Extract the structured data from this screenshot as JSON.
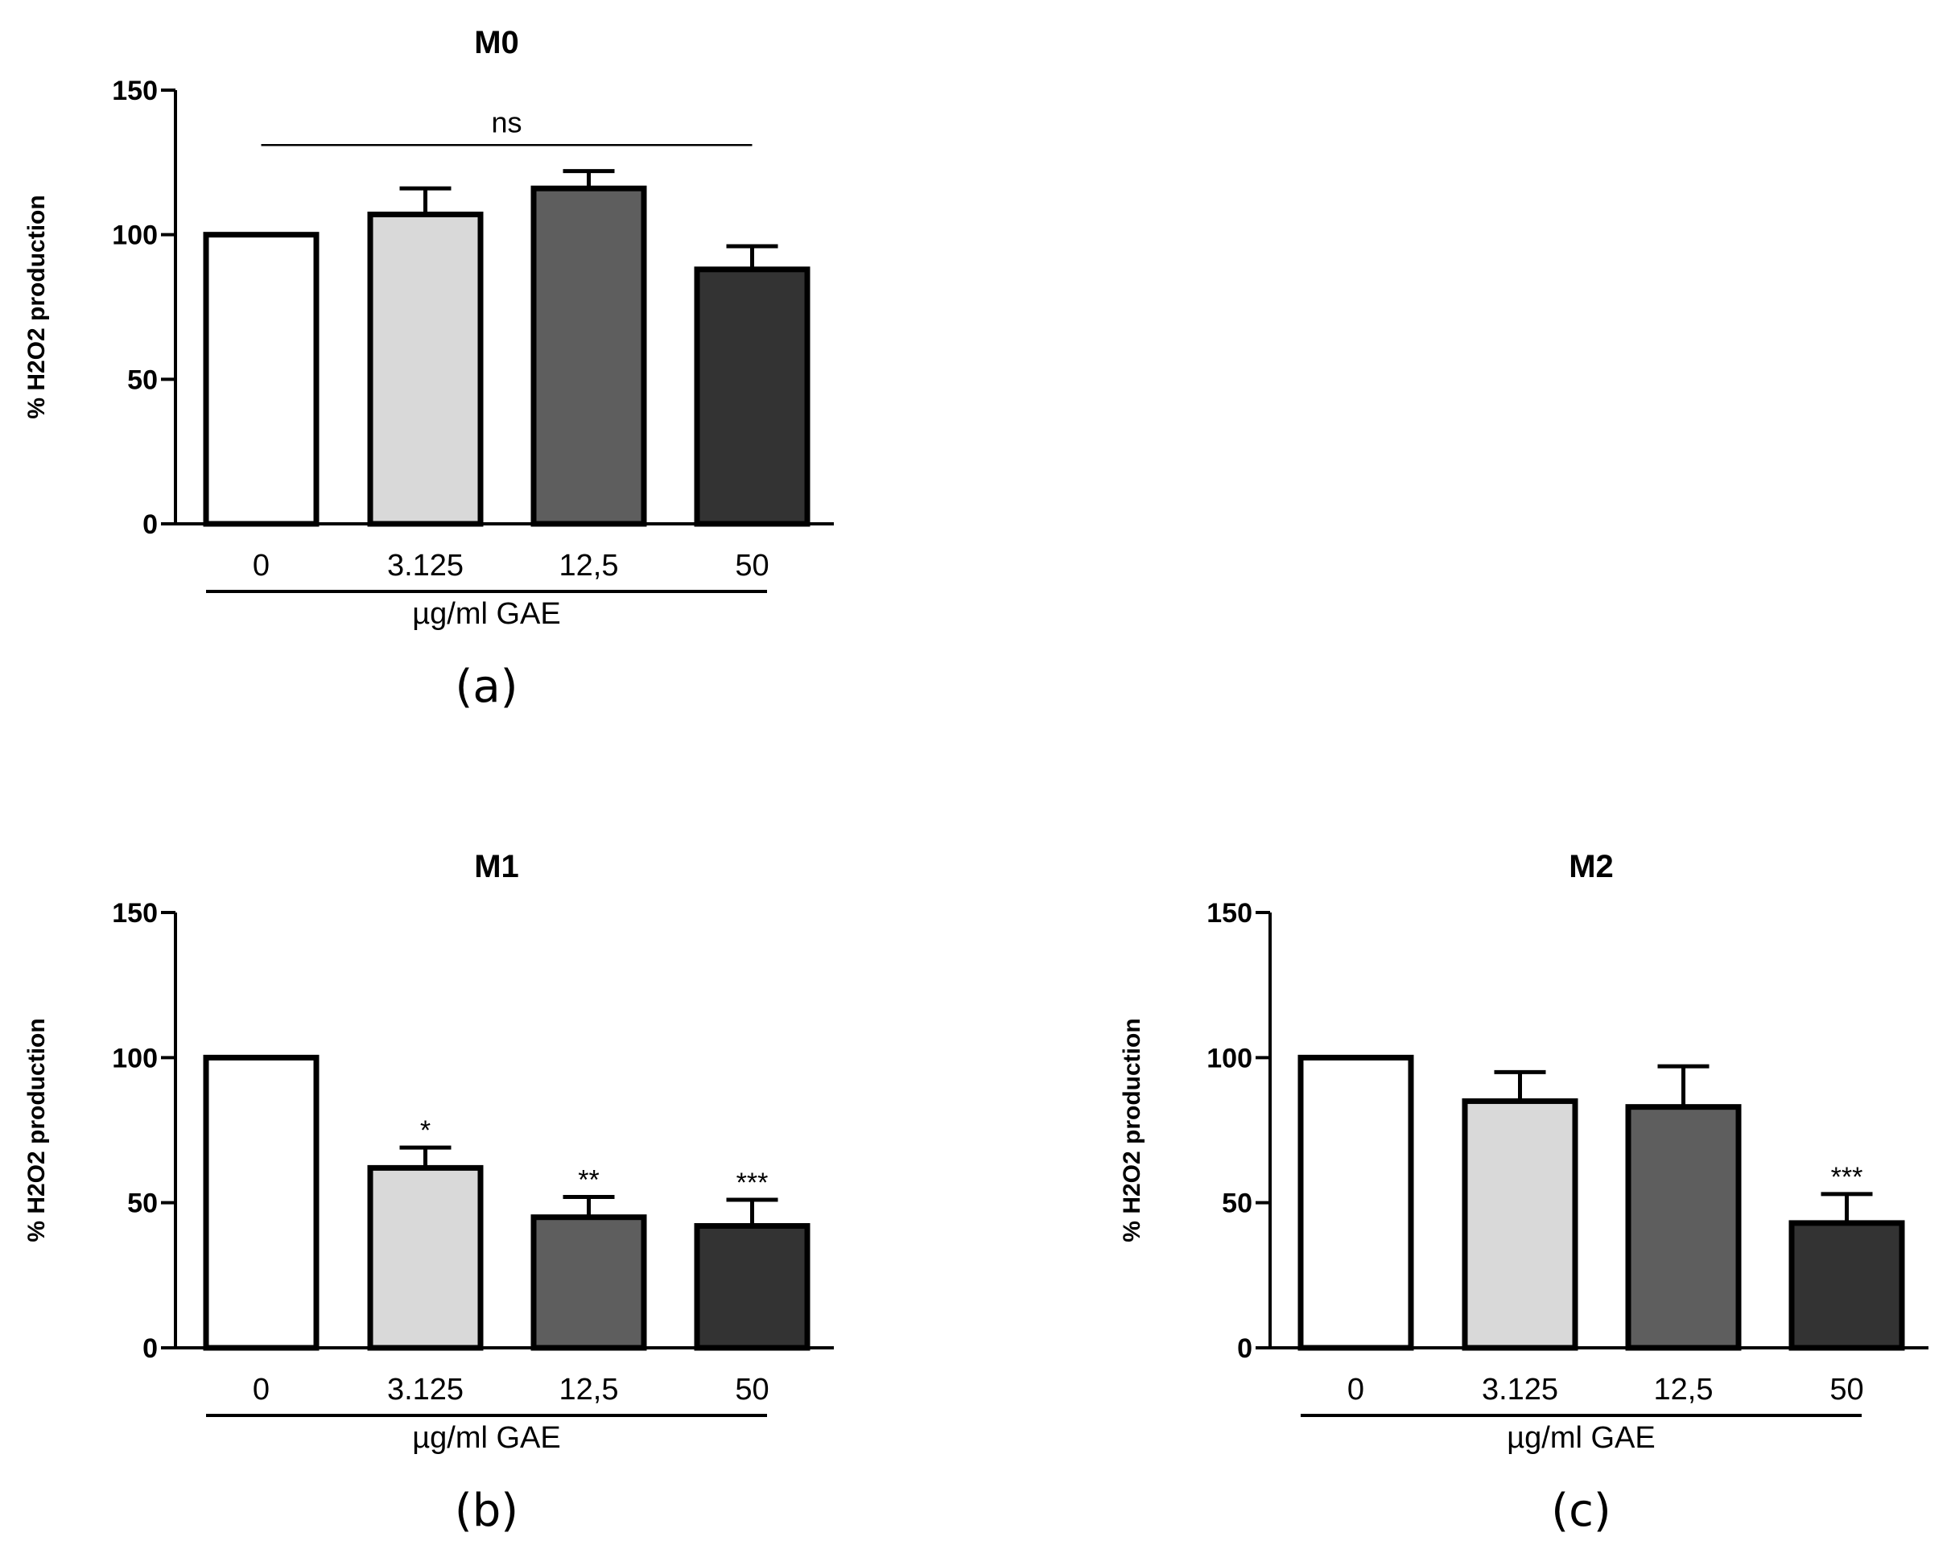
{
  "figure": {
    "colors": {
      "c0": "#ffffff",
      "c1": "#d9d9d9",
      "c2": "#5e5e5e",
      "c3": "#333333"
    }
  },
  "chart_data": [
    {
      "type": "bar",
      "title": "M0",
      "panel_label": "(a)",
      "xlabel": "µg/ml GAE",
      "ylabel": "% H2O2 production",
      "categories": [
        "0",
        "3.125",
        "12,5",
        "50"
      ],
      "values": [
        100,
        107,
        116,
        88
      ],
      "errors": [
        0,
        9,
        6,
        8
      ],
      "significance": [
        "",
        "",
        "",
        ""
      ],
      "group_annotation": "ns",
      "ylim": [
        0,
        150
      ],
      "yticks": [
        0,
        50,
        100,
        150
      ],
      "ytick_labels": [
        "0",
        "50",
        "100",
        "150"
      ]
    },
    {
      "type": "bar",
      "title": "M1",
      "panel_label": "(b)",
      "xlabel": "µg/ml GAE",
      "ylabel": "% H2O2 production",
      "categories": [
        "0",
        "3.125",
        "12,5",
        "50"
      ],
      "values": [
        100,
        62,
        45,
        42
      ],
      "errors": [
        0,
        7,
        7,
        9
      ],
      "significance": [
        "",
        "*",
        "**",
        "***"
      ],
      "group_annotation": "",
      "ylim": [
        0,
        150
      ],
      "yticks": [
        0,
        50,
        100,
        150
      ],
      "ytick_labels": [
        "0",
        "50",
        "100",
        "150"
      ]
    },
    {
      "type": "bar",
      "title": "M2",
      "panel_label": "(c)",
      "xlabel": "µg/ml GAE",
      "ylabel": "% H2O2 production",
      "categories": [
        "0",
        "3.125",
        "12,5",
        "50"
      ],
      "values": [
        100,
        85,
        83,
        43
      ],
      "errors": [
        0,
        10,
        14,
        10
      ],
      "significance": [
        "",
        "",
        "",
        "***"
      ],
      "group_annotation": "",
      "ylim": [
        0,
        150
      ],
      "yticks": [
        0,
        50,
        100,
        150
      ],
      "ytick_labels": [
        "0",
        "50",
        "100",
        "150"
      ]
    }
  ]
}
